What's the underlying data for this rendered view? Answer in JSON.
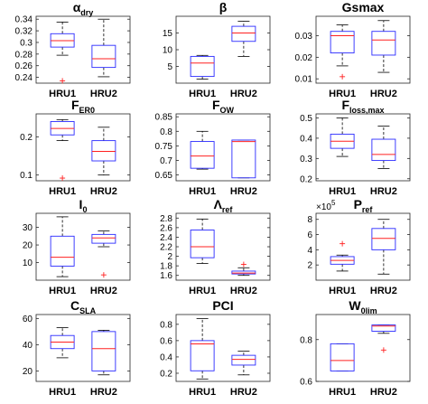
{
  "chart_data": [
    {
      "type": "boxplot",
      "title_parts": [
        {
          "t": "α"
        },
        {
          "t": "dry",
          "sub": true
        }
      ],
      "categories": [
        "HRU1",
        "HRU2"
      ],
      "ylim": [
        0.23,
        0.345
      ],
      "ticks": [
        0.24,
        0.26,
        0.28,
        0.3,
        0.32,
        0.34
      ],
      "tick_labels": [
        "0.24",
        "0.26",
        "0.28",
        "0.3",
        "0.32",
        "0.34"
      ],
      "boxes": [
        {
          "min": 0.278,
          "q1": 0.292,
          "median": 0.303,
          "q3": 0.315,
          "max": 0.335,
          "outliers": [
            0.234
          ]
        },
        {
          "min": 0.241,
          "q1": 0.257,
          "median": 0.272,
          "q3": 0.295,
          "max": 0.34,
          "outliers": []
        }
      ]
    },
    {
      "type": "boxplot",
      "title_parts": [
        {
          "t": "β"
        }
      ],
      "categories": [
        "HRU1",
        "HRU2"
      ],
      "ylim": [
        0,
        20
      ],
      "ticks": [
        5,
        10,
        15
      ],
      "tick_labels": [
        "5",
        "10",
        "15"
      ],
      "boxes": [
        {
          "min": 1.2,
          "q1": 2,
          "median": 6,
          "q3": 8,
          "max": 8.3,
          "outliers": []
        },
        {
          "min": 8,
          "q1": 12.5,
          "median": 15,
          "q3": 17,
          "max": 18.5,
          "outliers": []
        }
      ]
    },
    {
      "type": "boxplot",
      "title_parts": [
        {
          "t": "Gsmax"
        }
      ],
      "categories": [
        "HRU1",
        "HRU2"
      ],
      "ylim": [
        0.008,
        0.039
      ],
      "ticks": [
        0.01,
        0.02,
        0.03
      ],
      "tick_labels": [
        "0.01",
        "0.02",
        "0.03"
      ],
      "boxes": [
        {
          "min": 0.016,
          "q1": 0.022,
          "median": 0.03,
          "q3": 0.032,
          "max": 0.035,
          "outliers": [
            0.011
          ]
        },
        {
          "min": 0.013,
          "q1": 0.021,
          "median": 0.028,
          "q3": 0.032,
          "max": 0.037,
          "outliers": []
        }
      ]
    },
    {
      "type": "boxplot",
      "title_parts": [
        {
          "t": "F"
        },
        {
          "t": "ER0",
          "sub": true
        }
      ],
      "categories": [
        "HRU1",
        "HRU2"
      ],
      "ylim": [
        0.085,
        0.26
      ],
      "ticks": [
        0.1,
        0.2
      ],
      "tick_labels": [
        "0.1",
        "0.2"
      ],
      "boxes": [
        {
          "min": 0.19,
          "q1": 0.205,
          "median": 0.222,
          "q3": 0.24,
          "max": 0.245,
          "outliers": [
            0.092
          ]
        },
        {
          "min": 0.1,
          "q1": 0.137,
          "median": 0.162,
          "q3": 0.19,
          "max": 0.225,
          "outliers": []
        }
      ]
    },
    {
      "type": "boxplot",
      "title_parts": [
        {
          "t": "F"
        },
        {
          "t": "OW",
          "sub": true
        }
      ],
      "categories": [
        "HRU1",
        "HRU2"
      ],
      "ylim": [
        0.63,
        0.86
      ],
      "ticks": [
        0.65,
        0.7,
        0.75,
        0.8,
        0.85
      ],
      "tick_labels": [
        "0.65",
        "0.7",
        "0.75",
        "0.8",
        "0.85"
      ],
      "boxes": [
        {
          "min": 0.67,
          "q1": 0.673,
          "median": 0.715,
          "q3": 0.765,
          "max": 0.8,
          "outliers": []
        },
        {
          "min": 0.64,
          "q1": 0.64,
          "median": 0.765,
          "q3": 0.77,
          "max": 0.77,
          "outliers": []
        }
      ]
    },
    {
      "type": "boxplot",
      "title_parts": [
        {
          "t": "F"
        },
        {
          "t": "loss,max",
          "sub": true
        }
      ],
      "categories": [
        "HRU1",
        "HRU2"
      ],
      "ylim": [
        0.19,
        0.52
      ],
      "ticks": [
        0.2,
        0.3,
        0.4,
        0.5
      ],
      "tick_labels": [
        "0.2",
        "0.3",
        "0.4",
        "0.5"
      ],
      "boxes": [
        {
          "min": 0.31,
          "q1": 0.35,
          "median": 0.385,
          "q3": 0.42,
          "max": 0.5,
          "outliers": []
        },
        {
          "min": 0.25,
          "q1": 0.29,
          "median": 0.32,
          "q3": 0.395,
          "max": 0.46,
          "outliers": []
        }
      ]
    },
    {
      "type": "boxplot",
      "title_parts": [
        {
          "t": "I"
        },
        {
          "t": "0",
          "sub": true
        }
      ],
      "categories": [
        "HRU1",
        "HRU2"
      ],
      "ylim": [
        0,
        38
      ],
      "ticks": [
        10,
        20,
        30
      ],
      "tick_labels": [
        "10",
        "20",
        "30"
      ],
      "boxes": [
        {
          "min": 2,
          "q1": 8,
          "median": 13,
          "q3": 25,
          "max": 36,
          "outliers": []
        },
        {
          "min": 19,
          "q1": 21,
          "median": 24,
          "q3": 26,
          "max": 28,
          "outliers": [
            3
          ]
        }
      ]
    },
    {
      "type": "boxplot",
      "title_parts": [
        {
          "t": "Λ"
        },
        {
          "t": "ref",
          "sub": true
        }
      ],
      "categories": [
        "HRU1",
        "HRU2"
      ],
      "ylim": [
        1.5,
        2.9
      ],
      "ticks": [
        1.6,
        1.8,
        2,
        2.2,
        2.4,
        2.6,
        2.8
      ],
      "tick_labels": [
        "1.6",
        "1.8",
        "2",
        "2.2",
        "2.4",
        "2.6",
        "2.8"
      ],
      "boxes": [
        {
          "min": 1.85,
          "q1": 1.97,
          "median": 2.2,
          "q3": 2.55,
          "max": 2.78,
          "outliers": []
        },
        {
          "min": 1.6,
          "q1": 1.63,
          "median": 1.65,
          "q3": 1.69,
          "max": 1.76,
          "outliers": [
            1.83
          ]
        }
      ]
    },
    {
      "type": "boxplot",
      "title_parts": [
        {
          "t": "P"
        },
        {
          "t": "ref",
          "sub": true
        }
      ],
      "categories": [
        "HRU1",
        "HRU2"
      ],
      "ylim": [
        0,
        8.8
      ],
      "ticks": [
        2,
        4,
        6,
        8
      ],
      "tick_labels": [
        "2",
        "4",
        "6",
        "8"
      ],
      "exponent_label": "×10",
      "exponent_power": "5",
      "boxes": [
        {
          "min": 1.2,
          "q1": 2.1,
          "median": 2.6,
          "q3": 3.1,
          "max": 3.3,
          "outliers": [
            4.8
          ]
        },
        {
          "min": 0.8,
          "q1": 4,
          "median": 5.5,
          "q3": 6.8,
          "max": 8,
          "outliers": []
        }
      ]
    },
    {
      "type": "boxplot",
      "title_parts": [
        {
          "t": "C"
        },
        {
          "t": "SLA",
          "sub": true
        }
      ],
      "categories": [
        "HRU1",
        "HRU2"
      ],
      "ylim": [
        12,
        63
      ],
      "ticks": [
        20,
        40,
        60
      ],
      "tick_labels": [
        "20",
        "40",
        "60"
      ],
      "boxes": [
        {
          "min": 30,
          "q1": 37,
          "median": 42,
          "q3": 47,
          "max": 53,
          "outliers": []
        },
        {
          "min": 17,
          "q1": 20,
          "median": 37,
          "q3": 50,
          "max": 51,
          "outliers": []
        }
      ]
    },
    {
      "type": "boxplot",
      "title_parts": [
        {
          "t": "PCI"
        }
      ],
      "categories": [
        "HRU1",
        "HRU2"
      ],
      "ylim": [
        0.1,
        0.92
      ],
      "ticks": [
        0.2,
        0.4,
        0.6,
        0.8
      ],
      "tick_labels": [
        "0.2",
        "0.4",
        "0.6",
        "0.8"
      ],
      "boxes": [
        {
          "min": 0.13,
          "q1": 0.23,
          "median": 0.56,
          "q3": 0.6,
          "max": 0.87,
          "outliers": []
        },
        {
          "min": 0.18,
          "q1": 0.3,
          "median": 0.37,
          "q3": 0.42,
          "max": 0.47,
          "outliers": []
        }
      ]
    },
    {
      "type": "boxplot",
      "title_parts": [
        {
          "t": "W"
        },
        {
          "t": "0lim",
          "sub": true
        }
      ],
      "categories": [
        "HRU1",
        "HRU2"
      ],
      "ylim": [
        0.6,
        0.92
      ],
      "ticks": [
        0.6,
        0.8
      ],
      "tick_labels": [
        "0.6",
        "0.8"
      ],
      "boxes": [
        {
          "min": 0.65,
          "q1": 0.65,
          "median": 0.7,
          "q3": 0.78,
          "max": 0.78,
          "outliers": []
        },
        {
          "min": 0.83,
          "q1": 0.84,
          "median": 0.865,
          "q3": 0.87,
          "max": 0.87,
          "outliers": [
            0.75
          ]
        }
      ]
    }
  ]
}
